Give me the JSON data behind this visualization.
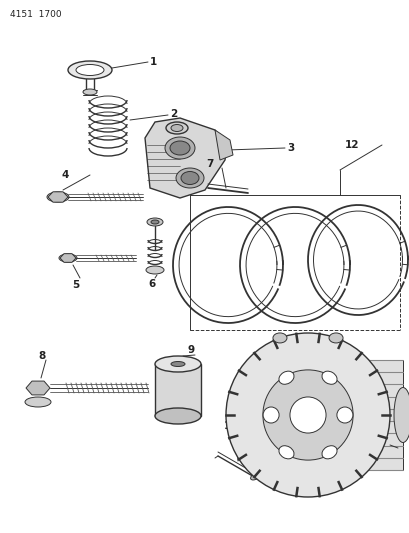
{
  "title_text": "4151  1700",
  "bg_color": "#ffffff",
  "line_color": "#333333",
  "leader_color": "#333333"
}
